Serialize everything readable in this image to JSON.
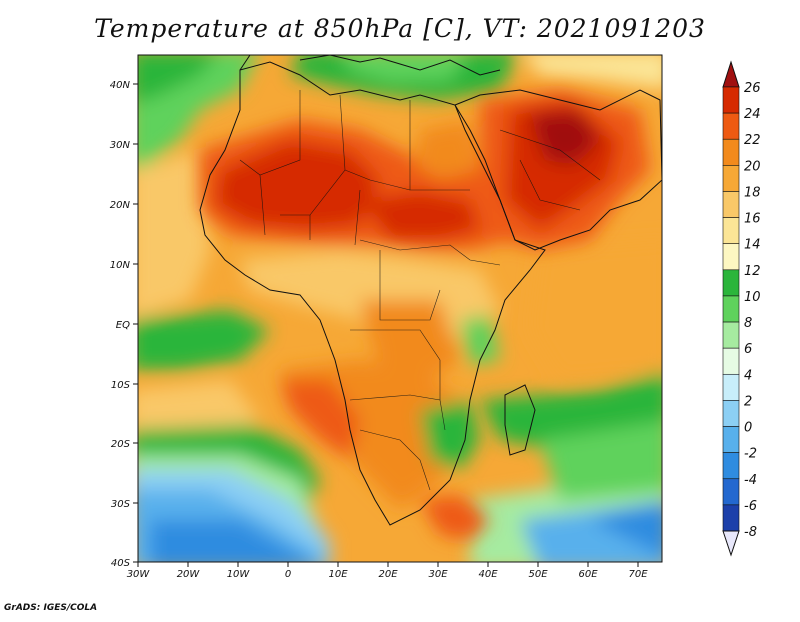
{
  "title": "Temperature at 850hPa [C], VT: 2021091203",
  "credit": "GrADS: IGES/COLA",
  "map": {
    "region": "Africa",
    "lon_range": [
      -30,
      75
    ],
    "lat_range": [
      -40,
      45
    ],
    "x_tick_labels": [
      "30W",
      "20W",
      "10W",
      "0",
      "10E",
      "20E",
      "30E",
      "40E",
      "50E",
      "60E",
      "70E"
    ],
    "y_tick_labels": [
      "40N",
      "30N",
      "20N",
      "10N",
      "EQ",
      "10S",
      "20S",
      "30S",
      "40S"
    ]
  },
  "colorbar": {
    "labels": [
      "26",
      "24",
      "22",
      "20",
      "18",
      "16",
      "14",
      "12",
      "10",
      "8",
      "6",
      "4",
      "2",
      "0",
      "-2",
      "-4",
      "-6",
      "-8"
    ],
    "colors": [
      "#a01010",
      "#d62a00",
      "#ee5a12",
      "#f28a1c",
      "#f6a836",
      "#f9c868",
      "#fbe596",
      "#fdf7c2",
      "#2bb53b",
      "#5fd25c",
      "#a6eba0",
      "#e6fbe4",
      "#c8eefa",
      "#8ccff4",
      "#58b0ec",
      "#2f8ce0",
      "#2368cf",
      "#1c40aa",
      "#0a1a6e"
    ],
    "over_color": "#a01010",
    "under_color": "#e8e8fb"
  }
}
